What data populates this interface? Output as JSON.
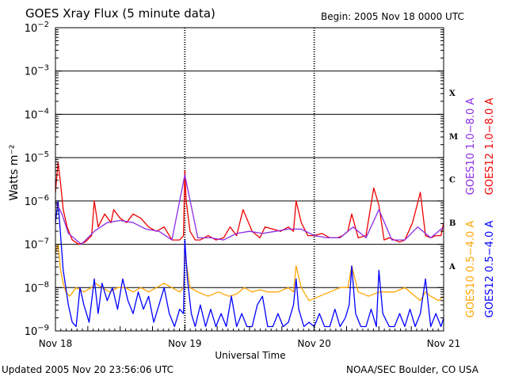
{
  "header": {
    "title": "GOES Xray Flux (5 minute data)",
    "begin": "Begin:  2005 Nov 18 0000 UTC"
  },
  "footer": {
    "updated": "Updated 2005 Nov 20 23:56:06 UTC",
    "credit": "NOAA/SEC Boulder, CO USA"
  },
  "chart_data": {
    "type": "line",
    "title": "GOES Xray Flux (5 minute data)",
    "xlabel": "Universal Time",
    "ylabel": "Watts m⁻²",
    "yscale": "log",
    "ylim_exp": [
      -9,
      -2
    ],
    "y_ticks": [
      {
        "exp": -2,
        "label": "10",
        "sup": "−2"
      },
      {
        "exp": -3,
        "label": "10",
        "sup": "−3"
      },
      {
        "exp": -4,
        "label": "10",
        "sup": "−4"
      },
      {
        "exp": -5,
        "label": "10",
        "sup": "−5"
      },
      {
        "exp": -6,
        "label": "10",
        "sup": "−6"
      },
      {
        "exp": -7,
        "label": "10",
        "sup": "−7"
      },
      {
        "exp": -8,
        "label": "10",
        "sup": "−8"
      },
      {
        "exp": -9,
        "label": "10",
        "sup": "−9"
      }
    ],
    "x_ticks": [
      {
        "day": 0,
        "label": "Nov 18"
      },
      {
        "day": 1,
        "label": "Nov 19"
      },
      {
        "day": 2,
        "label": "Nov 20"
      },
      {
        "day": 3,
        "label": "Nov 21"
      }
    ],
    "grid_lines_exp": [
      -3,
      -4,
      -5,
      -6,
      -7,
      -8
    ],
    "flare_classes": [
      {
        "label": "X",
        "exp_low": -4
      },
      {
        "label": "M",
        "exp_low": -5
      },
      {
        "label": "C",
        "exp_low": -6
      },
      {
        "label": "B",
        "exp_low": -7
      },
      {
        "label": "A",
        "exp_low": -8
      }
    ],
    "legend": [
      {
        "name": "GOES10 1.0−8.0 A",
        "color": "#8a2be2"
      },
      {
        "name": "GOES12 1.0−8.0 A",
        "color": "#ee0000"
      },
      {
        "name": "GOES10 0.5−4.0 A",
        "color": "#ffa500"
      },
      {
        "name": "GOES12 0.5−4.0 A",
        "color": "#0000ff"
      }
    ],
    "series": [
      {
        "name": "GOES12 1.0−8.0 A",
        "color": "#ee0000",
        "x_days": [
          0.0,
          0.02,
          0.04,
          0.06,
          0.09,
          0.13,
          0.18,
          0.23,
          0.28,
          0.3,
          0.33,
          0.38,
          0.43,
          0.45,
          0.5,
          0.55,
          0.6,
          0.66,
          0.72,
          0.78,
          0.84,
          0.9,
          0.96,
          0.99,
          1.0,
          1.01,
          1.04,
          1.08,
          1.12,
          1.18,
          1.24,
          1.3,
          1.35,
          1.4,
          1.45,
          1.52,
          1.58,
          1.62,
          1.68,
          1.74,
          1.8,
          1.84,
          1.86,
          1.9,
          1.95,
          2.0,
          2.06,
          2.12,
          2.18,
          2.22,
          2.26,
          2.29,
          2.34,
          2.4,
          2.46,
          2.5,
          2.54,
          2.58,
          2.62,
          2.66,
          2.7,
          2.76,
          2.82,
          2.86,
          2.9,
          2.94,
          2.98,
          3.0
        ],
        "log_y": [
          -5.8,
          -5.1,
          -5.6,
          -6.2,
          -6.6,
          -6.9,
          -7.0,
          -6.95,
          -6.8,
          -6.0,
          -6.6,
          -6.3,
          -6.5,
          -6.2,
          -6.4,
          -6.5,
          -6.3,
          -6.4,
          -6.6,
          -6.7,
          -6.6,
          -6.9,
          -6.9,
          -6.8,
          -5.3,
          -6.0,
          -6.7,
          -6.9,
          -6.9,
          -6.8,
          -6.9,
          -6.85,
          -6.6,
          -6.8,
          -6.2,
          -6.7,
          -6.85,
          -6.6,
          -6.65,
          -6.7,
          -6.6,
          -6.7,
          -6.0,
          -6.5,
          -6.8,
          -6.8,
          -6.75,
          -6.85,
          -6.85,
          -6.8,
          -6.7,
          -6.3,
          -6.85,
          -6.8,
          -5.7,
          -6.1,
          -6.9,
          -6.85,
          -6.9,
          -6.95,
          -6.9,
          -6.5,
          -5.8,
          -6.8,
          -6.85,
          -6.8,
          -6.8,
          -6.5
        ]
      },
      {
        "name": "GOES10 0.5−4.0 A",
        "color": "#ffa500",
        "x_days": [
          0.0,
          0.02,
          0.04,
          0.06,
          0.08,
          0.11,
          0.16,
          0.22,
          0.28,
          0.31,
          0.36,
          0.42,
          0.48,
          0.54,
          0.6,
          0.66,
          0.72,
          0.78,
          0.84,
          0.9,
          0.96,
          0.99,
          1.0,
          1.04,
          1.1,
          1.18,
          1.26,
          1.34,
          1.4,
          1.46,
          1.52,
          1.58,
          1.64,
          1.72,
          1.8,
          1.84,
          1.86,
          1.9,
          1.96,
          2.04,
          2.12,
          2.2,
          2.26,
          2.29,
          2.34,
          2.42,
          2.5,
          2.56,
          2.62,
          2.7,
          2.78,
          2.82,
          2.86,
          2.9,
          2.96,
          3.0
        ],
        "log_y": [
          -7.2,
          -7.0,
          -7.6,
          -7.9,
          -8.1,
          -8.2,
          -8.0,
          -8.1,
          -8.0,
          -7.9,
          -8.0,
          -8.1,
          -8.0,
          -8.0,
          -8.1,
          -8.0,
          -8.1,
          -8.0,
          -7.9,
          -8.0,
          -8.1,
          -8.0,
          -7.2,
          -8.0,
          -8.1,
          -8.2,
          -8.1,
          -8.2,
          -8.15,
          -8.0,
          -8.1,
          -8.05,
          -8.1,
          -8.1,
          -8.0,
          -8.1,
          -7.5,
          -8.0,
          -8.3,
          -8.2,
          -8.1,
          -8.0,
          -8.0,
          -7.5,
          -8.1,
          -8.2,
          -8.1,
          -8.1,
          -8.1,
          -8.0,
          -8.2,
          -8.3,
          -8.1,
          -8.2,
          -8.3,
          -8.2
        ]
      },
      {
        "name": "GOES12 0.5−4.0 A",
        "color": "#0000ff",
        "x_days": [
          0.0,
          0.02,
          0.04,
          0.06,
          0.08,
          0.1,
          0.13,
          0.16,
          0.19,
          0.22,
          0.26,
          0.3,
          0.33,
          0.36,
          0.4,
          0.44,
          0.48,
          0.52,
          0.56,
          0.6,
          0.64,
          0.68,
          0.72,
          0.76,
          0.8,
          0.84,
          0.88,
          0.92,
          0.96,
          0.99,
          1.0,
          1.02,
          1.05,
          1.08,
          1.12,
          1.16,
          1.2,
          1.24,
          1.28,
          1.32,
          1.36,
          1.4,
          1.44,
          1.48,
          1.52,
          1.56,
          1.6,
          1.64,
          1.68,
          1.72,
          1.76,
          1.8,
          1.84,
          1.86,
          1.88,
          1.92,
          1.96,
          2.0,
          2.04,
          2.08,
          2.12,
          2.16,
          2.2,
          2.24,
          2.27,
          2.29,
          2.32,
          2.36,
          2.4,
          2.44,
          2.48,
          2.5,
          2.53,
          2.58,
          2.62,
          2.66,
          2.7,
          2.74,
          2.78,
          2.82,
          2.86,
          2.9,
          2.94,
          2.98,
          3.0
        ],
        "log_y": [
          -6.5,
          -6.0,
          -6.8,
          -7.6,
          -8.0,
          -8.4,
          -8.8,
          -8.9,
          -8.0,
          -8.4,
          -8.8,
          -7.8,
          -8.6,
          -7.9,
          -8.3,
          -8.0,
          -8.5,
          -7.8,
          -8.3,
          -8.6,
          -8.1,
          -8.5,
          -8.2,
          -8.8,
          -8.4,
          -8.0,
          -8.6,
          -8.9,
          -8.5,
          -8.6,
          -6.9,
          -7.8,
          -8.6,
          -8.9,
          -8.4,
          -8.9,
          -8.5,
          -8.9,
          -8.6,
          -8.9,
          -8.2,
          -8.9,
          -8.6,
          -8.9,
          -8.9,
          -8.4,
          -8.2,
          -8.9,
          -8.9,
          -8.6,
          -8.9,
          -8.8,
          -8.4,
          -7.8,
          -8.5,
          -8.9,
          -8.8,
          -8.9,
          -8.6,
          -8.9,
          -8.9,
          -8.5,
          -8.9,
          -8.7,
          -8.4,
          -7.5,
          -8.6,
          -8.9,
          -8.9,
          -8.5,
          -8.9,
          -7.6,
          -8.6,
          -8.9,
          -8.9,
          -8.6,
          -8.9,
          -8.5,
          -8.9,
          -8.6,
          -7.8,
          -8.9,
          -8.6,
          -8.9,
          -8.7
        ]
      },
      {
        "name": "GOES10 1.0−8.0 A",
        "color": "#8a2be2",
        "x_days": [
          0.0,
          0.05,
          0.1,
          0.2,
          0.3,
          0.4,
          0.5,
          0.6,
          0.7,
          0.8,
          0.9,
          1.0,
          1.1,
          1.2,
          1.3,
          1.4,
          1.5,
          1.6,
          1.7,
          1.8,
          1.9,
          2.0,
          2.1,
          2.2,
          2.3,
          2.4,
          2.5,
          2.6,
          2.7,
          2.8,
          2.9,
          3.0
        ],
        "log_y": [
          -6.0,
          -6.3,
          -6.75,
          -7.0,
          -6.7,
          -6.5,
          -6.45,
          -6.5,
          -6.65,
          -6.7,
          -6.9,
          -5.4,
          -6.85,
          -6.85,
          -6.9,
          -6.75,
          -6.7,
          -6.75,
          -6.7,
          -6.65,
          -6.65,
          -6.8,
          -6.85,
          -6.85,
          -6.6,
          -6.85,
          -6.2,
          -6.9,
          -6.9,
          -6.6,
          -6.85,
          -6.6
        ]
      }
    ]
  }
}
